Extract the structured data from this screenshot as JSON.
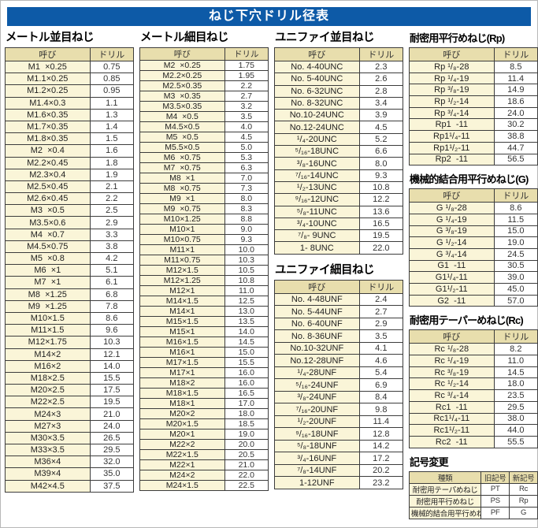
{
  "title": "ねじ下穴ドリル径表",
  "colors": {
    "title_bar": "#0d5aa7",
    "header_cell": "#e8dead",
    "name_cell": "#faf5d8",
    "value_cell": "#ffffff",
    "border": "#3c3c3c"
  },
  "sections": {
    "metric_coarse": {
      "heading": "メートル並目ねじ",
      "headers": [
        "呼び",
        "ドリル"
      ],
      "rows": [
        [
          "M1  ×0.25",
          "0.75"
        ],
        [
          "M1.1×0.25",
          "0.85"
        ],
        [
          "M1.2×0.25",
          "0.95"
        ],
        [
          "M1.4×0.3",
          "1.1"
        ],
        [
          "M1.6×0.35",
          "1.3"
        ],
        [
          "M1.7×0.35",
          "1.4"
        ],
        [
          "M1.8×0.35",
          "1.5"
        ],
        [
          "M2  ×0.4",
          "1.6"
        ],
        [
          "M2.2×0.45",
          "1.8"
        ],
        [
          "M2.3×0.4",
          "1.9"
        ],
        [
          "M2.5×0.45",
          "2.1"
        ],
        [
          "M2.6×0.45",
          "2.2"
        ],
        [
          "M3  ×0.5",
          "2.5"
        ],
        [
          "M3.5×0.6",
          "2.9"
        ],
        [
          "M4  ×0.7",
          "3.3"
        ],
        [
          "M4.5×0.75",
          "3.8"
        ],
        [
          "M5  ×0.8",
          "4.2"
        ],
        [
          "M6  ×1",
          "5.1"
        ],
        [
          "M7  ×1",
          "6.1"
        ],
        [
          "M8  ×1.25",
          "6.8"
        ],
        [
          "M9  ×1.25",
          "7.8"
        ],
        [
          "M10×1.5",
          "8.6"
        ],
        [
          "M11×1.5",
          "9.6"
        ],
        [
          "M12×1.75",
          "10.3"
        ],
        [
          "M14×2",
          "12.1"
        ],
        [
          "M16×2",
          "14.0"
        ],
        [
          "M18×2.5",
          "15.5"
        ],
        [
          "M20×2.5",
          "17.5"
        ],
        [
          "M22×2.5",
          "19.5"
        ],
        [
          "M24×3",
          "21.0"
        ],
        [
          "M27×3",
          "24.0"
        ],
        [
          "M30×3.5",
          "26.5"
        ],
        [
          "M33×3.5",
          "29.5"
        ],
        [
          "M36×4",
          "32.0"
        ],
        [
          "M39×4",
          "35.0"
        ],
        [
          "M42×4.5",
          "37.5"
        ]
      ]
    },
    "metric_fine": {
      "heading": "メートル細目ねじ",
      "headers": [
        "呼び",
        "ドリル"
      ],
      "rows": [
        [
          "M2  ×0.25",
          "1.75"
        ],
        [
          "M2.2×0.25",
          "1.95"
        ],
        [
          "M2.5×0.35",
          "2.2"
        ],
        [
          "M3  ×0.35",
          "2.7"
        ],
        [
          "M3.5×0.35",
          "3.2"
        ],
        [
          "M4  ×0.5",
          "3.5"
        ],
        [
          "M4.5×0.5",
          "4.0"
        ],
        [
          "M5  ×0.5",
          "4.5"
        ],
        [
          "M5.5×0.5",
          "5.0"
        ],
        [
          "M6  ×0.75",
          "5.3"
        ],
        [
          "M7  ×0.75",
          "6.3"
        ],
        [
          "M8  ×1",
          "7.0"
        ],
        [
          "M8  ×0.75",
          "7.3"
        ],
        [
          "M9  ×1",
          "8.0"
        ],
        [
          "M9  ×0.75",
          "8.3"
        ],
        [
          "M10×1.25",
          "8.8"
        ],
        [
          "M10×1",
          "9.0"
        ],
        [
          "M10×0.75",
          "9.3"
        ],
        [
          "M11×1",
          "10.0"
        ],
        [
          "M11×0.75",
          "10.3"
        ],
        [
          "M12×1.5",
          "10.5"
        ],
        [
          "M12×1.25",
          "10.8"
        ],
        [
          "M12×1",
          "11.0"
        ],
        [
          "M14×1.5",
          "12.5"
        ],
        [
          "M14×1",
          "13.0"
        ],
        [
          "M15×1.5",
          "13.5"
        ],
        [
          "M15×1",
          "14.0"
        ],
        [
          "M16×1.5",
          "14.5"
        ],
        [
          "M16×1",
          "15.0"
        ],
        [
          "M17×1.5",
          "15.5"
        ],
        [
          "M17×1",
          "16.0"
        ],
        [
          "M18×2",
          "16.0"
        ],
        [
          "M18×1.5",
          "16.5"
        ],
        [
          "M18×1",
          "17.0"
        ],
        [
          "M20×2",
          "18.0"
        ],
        [
          "M20×1.5",
          "18.5"
        ],
        [
          "M20×1",
          "19.0"
        ],
        [
          "M22×2",
          "20.0"
        ],
        [
          "M22×1.5",
          "20.5"
        ],
        [
          "M22×1",
          "21.0"
        ],
        [
          "M24×2",
          "22.0"
        ],
        [
          "M24×1.5",
          "22.5"
        ]
      ]
    },
    "unified_coarse": {
      "heading": "ユニファイ並目ねじ",
      "headers": [
        "呼び",
        "ドリル"
      ],
      "rows": [
        [
          "No. 4-40UNC",
          "2.3"
        ],
        [
          "No. 5-40UNC",
          "2.6"
        ],
        [
          "No. 6-32UNC",
          "2.8"
        ],
        [
          "No. 8-32UNC",
          "3.4"
        ],
        [
          "No.10-24UNC",
          "3.9"
        ],
        [
          "No.12-24UNC",
          "4.5"
        ],
        [
          "¹/₄-20UNC",
          "5.2"
        ],
        [
          "⁵/₁₆-18UNC",
          "6.6"
        ],
        [
          "³/₈-16UNC",
          "8.0"
        ],
        [
          "⁷/₁₆-14UNC",
          "9.3"
        ],
        [
          "¹/₂-13UNC",
          "10.8"
        ],
        [
          "⁹/₁₆-12UNC",
          "12.2"
        ],
        [
          "⁵/₈-11UNC",
          "13.6"
        ],
        [
          "³/₄-10UNC",
          "16.5"
        ],
        [
          "⁷/₈- 9UNC",
          "19.5"
        ],
        [
          "1- 8UNC",
          "22.0"
        ]
      ]
    },
    "unified_fine": {
      "heading": "ユニファイ細目ねじ",
      "headers": [
        "呼び",
        "ドリル"
      ],
      "rows": [
        [
          "No. 4-48UNF",
          "2.4"
        ],
        [
          "No. 5-44UNF",
          "2.7"
        ],
        [
          "No. 6-40UNF",
          "2.9"
        ],
        [
          "No. 8-36UNF",
          "3.5"
        ],
        [
          "No.10-32UNF",
          "4.1"
        ],
        [
          "No.12-28UNF",
          "4.6"
        ],
        [
          "¹/₄-28UNF",
          "5.4"
        ],
        [
          "⁵/₁₆-24UNF",
          "6.9"
        ],
        [
          "³/₈-24UNF",
          "8.4"
        ],
        [
          "⁷/₁₆-20UNF",
          "9.8"
        ],
        [
          "¹/₂-20UNF",
          "11.4"
        ],
        [
          "⁹/₁₆-18UNF",
          "12.8"
        ],
        [
          "⁵/₈-18UNF",
          "14.2"
        ],
        [
          "³/₄-16UNF",
          "17.2"
        ],
        [
          "⁷/₈-14UNF",
          "20.2"
        ],
        [
          "1-12UNF",
          "23.2"
        ]
      ]
    },
    "rp": {
      "heading": "耐密用平行めねじ(Rp)",
      "headers": [
        "呼び",
        "ドリル"
      ],
      "rows": [
        [
          "Rp ¹/₈-28",
          "8.5"
        ],
        [
          "Rp ¹/₄-19",
          "11.4"
        ],
        [
          "Rp ³/₈-19",
          "14.9"
        ],
        [
          "Rp ¹/₂-14",
          "18.6"
        ],
        [
          "Rp ³/₄-14",
          "24.0"
        ],
        [
          "Rp1  -11",
          "30.2"
        ],
        [
          "Rp1¹/₄-11",
          "38.8"
        ],
        [
          "Rp1¹/₂-11",
          "44.7"
        ],
        [
          "Rp2  -11",
          "56.5"
        ]
      ]
    },
    "g": {
      "heading": "機械的結合用平行めねじ(G)",
      "headers": [
        "呼び",
        "ドリル"
      ],
      "rows": [
        [
          "G ¹/₈-28",
          "8.6"
        ],
        [
          "G ¹/₄-19",
          "11.5"
        ],
        [
          "G ³/₈-19",
          "15.0"
        ],
        [
          "G ¹/₂-14",
          "19.0"
        ],
        [
          "G ³/₄-14",
          "24.5"
        ],
        [
          "G1  -11",
          "30.5"
        ],
        [
          "G1¹/₄-11",
          "39.0"
        ],
        [
          "G1¹/₂-11",
          "45.0"
        ],
        [
          "G2  -11",
          "57.0"
        ]
      ]
    },
    "rc": {
      "heading": "耐密用テーパーめねじ(Rc)",
      "headers": [
        "呼び",
        "ドリル"
      ],
      "rows": [
        [
          "Rc ¹/₈-28",
          "8.2"
        ],
        [
          "Rc ¹/₄-19",
          "11.0"
        ],
        [
          "Rc ³/₈-19",
          "14.5"
        ],
        [
          "Rc ¹/₂-14",
          "18.0"
        ],
        [
          "Rc ³/₄-14",
          "23.5"
        ],
        [
          "Rc1  -11",
          "29.5"
        ],
        [
          "Rc1¹/₄-11",
          "38.0"
        ],
        [
          "Rc1¹/₂-11",
          "44.0"
        ],
        [
          "Rc2  -11",
          "55.5"
        ]
      ]
    },
    "symbol_change": {
      "heading": "記号変更",
      "headers": [
        "種類",
        "旧記号",
        "新記号"
      ],
      "rows": [
        [
          "耐密用テーパめねじ",
          "PT",
          "Rc"
        ],
        [
          "耐密用平行めねじ",
          "PS",
          "Rp"
        ],
        [
          "機械的結合用平行めねじ",
          "PF",
          "G"
        ]
      ]
    }
  }
}
